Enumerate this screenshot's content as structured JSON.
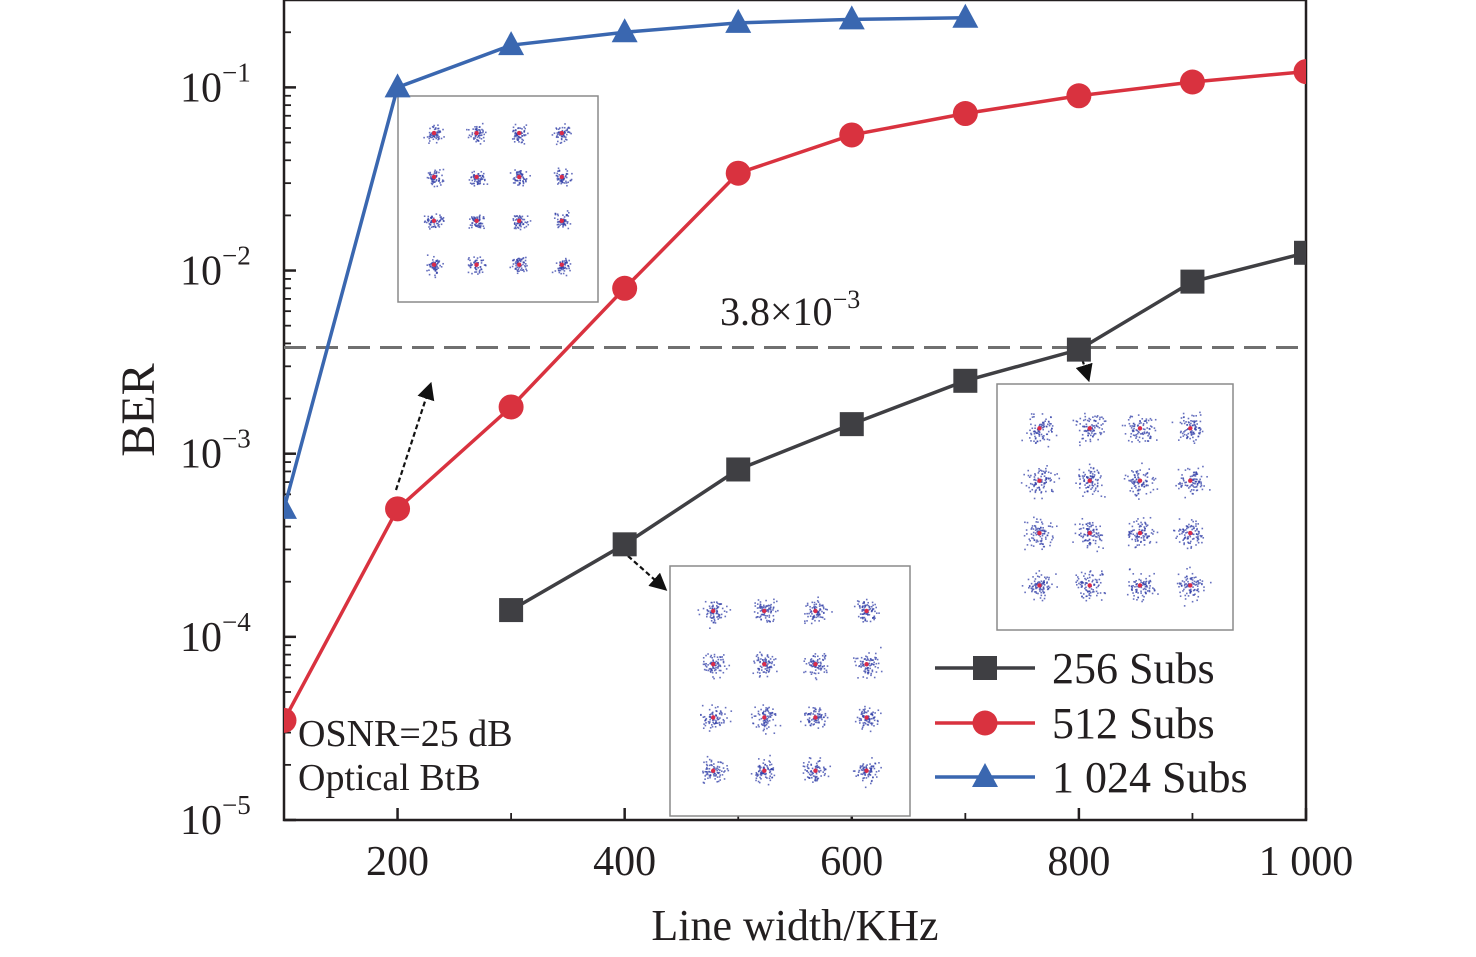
{
  "chart_data": {
    "type": "line",
    "xlabel": "Line width/KHz",
    "ylabel": "BER",
    "xlim": [
      100,
      1000
    ],
    "ylim": [
      1e-05,
      0.3
    ],
    "yscale": "log",
    "x_ticks": [
      {
        "value": 200,
        "label": "200"
      },
      {
        "value": 400,
        "label": "400"
      },
      {
        "value": 600,
        "label": "600"
      },
      {
        "value": 800,
        "label": "800"
      },
      {
        "value": 1000,
        "label": "1 000"
      }
    ],
    "y_ticks": [
      {
        "value": 1e-05,
        "base": "10",
        "exp": "−5"
      },
      {
        "value": 0.0001,
        "base": "10",
        "exp": "−4"
      },
      {
        "value": 0.001,
        "base": "10",
        "exp": "−3"
      },
      {
        "value": 0.01,
        "base": "10",
        "exp": "−2"
      },
      {
        "value": 0.1,
        "base": "10",
        "exp": "−1"
      }
    ],
    "threshold": {
      "value": 0.0038,
      "label": "3.8×10",
      "label_exp": "−3"
    },
    "annotations": [
      "OSNR=25 dB",
      "Optical BtB"
    ],
    "series": [
      {
        "name": "256 Subs",
        "marker": "square",
        "color": "#3f3f43",
        "x": [
          300,
          400,
          500,
          600,
          700,
          800,
          900,
          1000
        ],
        "values": [
          0.00014,
          0.00032,
          0.00082,
          0.00145,
          0.0025,
          0.0037,
          0.0087,
          0.0125
        ]
      },
      {
        "name": "512 Subs",
        "marker": "circle",
        "color": "#d9323f",
        "x": [
          100,
          200,
          300,
          400,
          500,
          600,
          700,
          800,
          900,
          1000
        ],
        "values": [
          3.5e-05,
          0.0005,
          0.0018,
          0.008,
          0.034,
          0.055,
          0.072,
          0.09,
          0.107,
          0.122
        ]
      },
      {
        "name": "1 024 Subs",
        "marker": "triangle",
        "color": "#3a67b0",
        "x": [
          100,
          200,
          300,
          400,
          500,
          600,
          700
        ],
        "values": [
          0.0005,
          0.1,
          0.17,
          0.2,
          0.225,
          0.235,
          0.24
        ]
      }
    ]
  }
}
